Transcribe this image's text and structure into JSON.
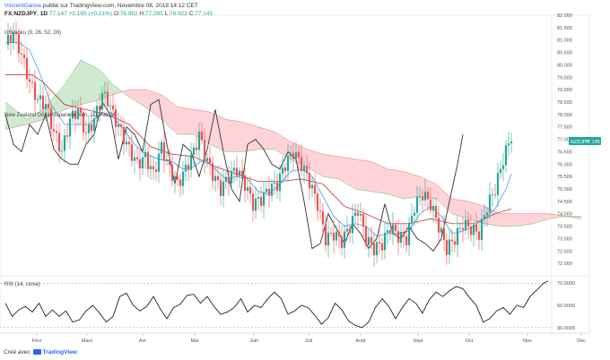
{
  "header": {
    "author": "VincentGanne",
    "published": "publié sur TradingView.com, Novembre 08, 2018 14:12 CET",
    "symbol": "FX:NZDJPY",
    "interval": "1D",
    "last": "77.147",
    "change": "+0.165 (+0.21%)",
    "open_label": "O:",
    "open": "76.982",
    "high_label": "H:",
    "high": "77.265",
    "low_label": "L:",
    "low": "76.923",
    "close_label": "C:",
    "close": "77.145"
  },
  "footer": {
    "created": "Créé avec",
    "brand": "TradingView"
  },
  "colors": {
    "up": "#26a69a",
    "down": "#ef5350",
    "bull_cloud": "#c8e6c9",
    "bear_cloud": "#ffcdd2",
    "conversion": "#2196f3",
    "base": "#b71c1c",
    "lagging": "#333333",
    "last_badge": "#26a69a"
  },
  "chart_data": [
    {
      "type": "candlestick",
      "title": "New Zealand Dollar/Japanese Yen, 1D, FXCM",
      "indicator": "Ichimoku (9, 26, 52, 26)",
      "x_labels": [
        "Févr",
        "Mars",
        "Avr",
        "Mai",
        "Juin",
        "Juil",
        "Août",
        "Sept",
        "Oct",
        "Nov",
        "Déc"
      ],
      "ylim": [
        71.5,
        82.0
      ],
      "y_ticks": [
        "82.000",
        "81.500",
        "81.000",
        "80.500",
        "80.000",
        "79.500",
        "79.000",
        "78.500",
        "78.000",
        "77.500",
        "77.000",
        "76.500",
        "76.000",
        "75.500",
        "75.000",
        "74.500",
        "74.000",
        "73.500",
        "73.000",
        "72.500",
        "72.000"
      ],
      "last_label": "NZDJPY",
      "last_value": "77.145",
      "close_path": [
        [
          0,
          80.8
        ],
        [
          3,
          81.3
        ],
        [
          6,
          80.4
        ],
        [
          9,
          79.3
        ],
        [
          12,
          78.6
        ],
        [
          15,
          78.4
        ],
        [
          18,
          77.3
        ],
        [
          21,
          76.5
        ],
        [
          24,
          77.8
        ],
        [
          27,
          78.2
        ],
        [
          30,
          77.2
        ],
        [
          33,
          77.8
        ],
        [
          36,
          78.8
        ],
        [
          38,
          78.6
        ],
        [
          40,
          78.0
        ],
        [
          43,
          77.3
        ],
        [
          46,
          76.6
        ],
        [
          49,
          76.0
        ],
        [
          52,
          76.3
        ],
        [
          55,
          75.6
        ],
        [
          58,
          76.7
        ],
        [
          61,
          75.8
        ],
        [
          64,
          75.2
        ],
        [
          67,
          75.8
        ],
        [
          70,
          76.5
        ],
        [
          72,
          77.2
        ],
        [
          74,
          76.4
        ],
        [
          77,
          75.6
        ],
        [
          80,
          75.0
        ],
        [
          83,
          75.5
        ],
        [
          86,
          75.8
        ],
        [
          89,
          75.2
        ],
        [
          92,
          74.4
        ],
        [
          95,
          74.6
        ],
        [
          98,
          75.0
        ],
        [
          101,
          75.2
        ],
        [
          104,
          76.0
        ],
        [
          107,
          76.5
        ],
        [
          110,
          76.0
        ],
        [
          113,
          75.3
        ],
        [
          116,
          74.4
        ],
        [
          119,
          73.0
        ],
        [
          122,
          73.2
        ],
        [
          125,
          72.9
        ],
        [
          128,
          73.5
        ],
        [
          131,
          74.2
        ],
        [
          134,
          73.0
        ],
        [
          137,
          72.6
        ],
        [
          140,
          72.8
        ],
        [
          143,
          73.5
        ],
        [
          146,
          73.1
        ],
        [
          149,
          73.0
        ],
        [
          152,
          74.3
        ],
        [
          155,
          74.8
        ],
        [
          158,
          74.4
        ],
        [
          161,
          73.5
        ],
        [
          164,
          72.6
        ],
        [
          167,
          73.0
        ],
        [
          170,
          73.6
        ],
        [
          173,
          73.4
        ],
        [
          176,
          73.2
        ],
        [
          179,
          74.3
        ],
        [
          182,
          75.0
        ],
        [
          185,
          76.2
        ],
        [
          188,
          77.15
        ]
      ],
      "conversion_path": [
        [
          0,
          80.9
        ],
        [
          5,
          80.9
        ],
        [
          9,
          80.6
        ],
        [
          13,
          79.6
        ],
        [
          17,
          78.4
        ],
        [
          22,
          77.6
        ],
        [
          27,
          77.6
        ],
        [
          31,
          77.6
        ],
        [
          35,
          78.0
        ],
        [
          40,
          77.9
        ],
        [
          44,
          77.4
        ],
        [
          48,
          76.8
        ],
        [
          52,
          76.4
        ],
        [
          57,
          76.2
        ],
        [
          62,
          76.1
        ],
        [
          66,
          75.8
        ],
        [
          70,
          75.9
        ],
        [
          74,
          76.2
        ],
        [
          78,
          75.8
        ],
        [
          82,
          75.4
        ],
        [
          86,
          75.5
        ],
        [
          90,
          75.4
        ],
        [
          94,
          74.9
        ],
        [
          98,
          74.8
        ],
        [
          102,
          75.2
        ],
        [
          106,
          75.7
        ],
        [
          110,
          75.8
        ],
        [
          114,
          75.5
        ],
        [
          118,
          74.7
        ],
        [
          122,
          73.9
        ],
        [
          126,
          73.5
        ],
        [
          130,
          73.6
        ],
        [
          134,
          73.5
        ],
        [
          138,
          73.1
        ],
        [
          142,
          73.2
        ],
        [
          146,
          73.2
        ],
        [
          150,
          73.3
        ],
        [
          154,
          74.0
        ],
        [
          158,
          74.3
        ],
        [
          162,
          73.9
        ],
        [
          166,
          73.2
        ],
        [
          170,
          73.3
        ],
        [
          174,
          73.5
        ],
        [
          178,
          73.8
        ],
        [
          182,
          74.2
        ],
        [
          186,
          75.0
        ],
        [
          188,
          75.6
        ]
      ],
      "base_path": [
        [
          0,
          79.6
        ],
        [
          10,
          79.6
        ],
        [
          14,
          79.3
        ],
        [
          22,
          78.4
        ],
        [
          30,
          78.2
        ],
        [
          38,
          78.0
        ],
        [
          46,
          77.6
        ],
        [
          54,
          76.7
        ],
        [
          62,
          76.4
        ],
        [
          70,
          76.3
        ],
        [
          78,
          75.9
        ],
        [
          86,
          75.6
        ],
        [
          94,
          75.3
        ],
        [
          102,
          75.3
        ],
        [
          110,
          75.4
        ],
        [
          118,
          75.2
        ],
        [
          126,
          74.3
        ],
        [
          134,
          74.0
        ],
        [
          142,
          73.6
        ],
        [
          150,
          73.6
        ],
        [
          158,
          73.8
        ],
        [
          166,
          73.6
        ],
        [
          174,
          73.6
        ],
        [
          182,
          74.0
        ],
        [
          188,
          74.2
        ]
      ],
      "span_a_path": [
        [
          0,
          78.5
        ],
        [
          8,
          77.8
        ],
        [
          14,
          78.2
        ],
        [
          22,
          79.2
        ],
        [
          28,
          80.2
        ],
        [
          35,
          79.8
        ],
        [
          40,
          79.2
        ],
        [
          46,
          78.7
        ],
        [
          52,
          78.3
        ],
        [
          58,
          77.8
        ],
        [
          64,
          77.2
        ],
        [
          70,
          77.2
        ],
        [
          76,
          76.8
        ],
        [
          82,
          76.5
        ],
        [
          88,
          76.5
        ],
        [
          94,
          76.6
        ],
        [
          100,
          76.6
        ],
        [
          106,
          76.2
        ],
        [
          112,
          75.9
        ],
        [
          118,
          75.5
        ],
        [
          124,
          75.4
        ],
        [
          130,
          75.0
        ],
        [
          136,
          74.9
        ],
        [
          142,
          74.8
        ],
        [
          148,
          74.6
        ],
        [
          154,
          74.7
        ],
        [
          160,
          74.6
        ],
        [
          166,
          74.0
        ],
        [
          172,
          73.8
        ],
        [
          178,
          73.6
        ],
        [
          184,
          73.5
        ],
        [
          190,
          73.5
        ],
        [
          196,
          73.6
        ],
        [
          202,
          73.8
        ],
        [
          208,
          73.9
        ],
        [
          214,
          73.8
        ]
      ],
      "span_b_path": [
        [
          0,
          77.4
        ],
        [
          8,
          77.6
        ],
        [
          14,
          77.8
        ],
        [
          22,
          78.2
        ],
        [
          28,
          78.4
        ],
        [
          35,
          78.6
        ],
        [
          40,
          78.8
        ],
        [
          46,
          79.0
        ],
        [
          52,
          79.0
        ],
        [
          58,
          78.8
        ],
        [
          64,
          78.3
        ],
        [
          70,
          78.2
        ],
        [
          76,
          78.1
        ],
        [
          82,
          77.8
        ],
        [
          88,
          77.7
        ],
        [
          94,
          77.5
        ],
        [
          100,
          77.3
        ],
        [
          106,
          76.9
        ],
        [
          112,
          76.6
        ],
        [
          118,
          76.4
        ],
        [
          124,
          76.3
        ],
        [
          130,
          76.2
        ],
        [
          136,
          76.1
        ],
        [
          142,
          75.8
        ],
        [
          148,
          75.7
        ],
        [
          154,
          75.5
        ],
        [
          160,
          75.2
        ],
        [
          166,
          74.6
        ],
        [
          172,
          74.5
        ],
        [
          178,
          74.3
        ],
        [
          184,
          74.0
        ],
        [
          190,
          74.0
        ],
        [
          196,
          74.0
        ],
        [
          202,
          74.0
        ],
        [
          208,
          73.9
        ],
        [
          214,
          73.9
        ]
      ],
      "lagging_path": [
        [
          0,
          78.0
        ],
        [
          3,
          76.8
        ],
        [
          6,
          76.5
        ],
        [
          9,
          77.6
        ],
        [
          12,
          77.2
        ],
        [
          15,
          78.0
        ],
        [
          18,
          76.6
        ],
        [
          21,
          76.2
        ],
        [
          24,
          76.0
        ],
        [
          27,
          76.0
        ],
        [
          30,
          76.8
        ],
        [
          33,
          77.2
        ],
        [
          36,
          78.5
        ],
        [
          39,
          78.0
        ],
        [
          42,
          76.2
        ],
        [
          45,
          77.5
        ],
        [
          48,
          77.2
        ],
        [
          51,
          76.5
        ],
        [
          54,
          78.4
        ],
        [
          57,
          78.6
        ],
        [
          60,
          76.8
        ],
        [
          63,
          75.2
        ],
        [
          66,
          76.8
        ],
        [
          69,
          76.5
        ],
        [
          72,
          75.5
        ],
        [
          75,
          76.6
        ],
        [
          78,
          78.2
        ],
        [
          81,
          76.5
        ],
        [
          84,
          75.0
        ],
        [
          87,
          74.5
        ],
        [
          90,
          76.8
        ],
        [
          93,
          77.0
        ],
        [
          96,
          76.6
        ],
        [
          99,
          76.0
        ],
        [
          102,
          75.8
        ],
        [
          105,
          76.5
        ],
        [
          108,
          76.2
        ],
        [
          111,
          74.5
        ],
        [
          114,
          72.6
        ],
        [
          117,
          72.8
        ],
        [
          120,
          74.0
        ],
        [
          123,
          73.4
        ],
        [
          126,
          72.8
        ],
        [
          129,
          73.6
        ],
        [
          132,
          73.2
        ],
        [
          135,
          72.6
        ],
        [
          138,
          73.0
        ],
        [
          141,
          74.4
        ],
        [
          144,
          73.2
        ],
        [
          147,
          73.0
        ],
        [
          150,
          73.5
        ],
        [
          153,
          73.0
        ],
        [
          156,
          72.8
        ],
        [
          159,
          72.5
        ],
        [
          162,
          73.0
        ],
        [
          165,
          74.5
        ],
        [
          168,
          76.0
        ],
        [
          170,
          77.2
        ]
      ]
    },
    {
      "type": "line",
      "title": "RSI (14, close)",
      "ylim": [
        25,
        75
      ],
      "y_ticks": [
        "70.0000",
        "50.0000",
        "30.0000"
      ],
      "guide_levels": [
        70,
        30
      ],
      "values": [
        [
          0,
          52
        ],
        [
          3,
          40
        ],
        [
          6,
          46
        ],
        [
          9,
          49
        ],
        [
          12,
          44
        ],
        [
          15,
          52
        ],
        [
          18,
          40
        ],
        [
          21,
          46
        ],
        [
          24,
          40
        ],
        [
          27,
          45
        ],
        [
          30,
          35
        ],
        [
          33,
          37
        ],
        [
          36,
          45
        ],
        [
          39,
          50
        ],
        [
          42,
          43
        ],
        [
          45,
          35
        ],
        [
          48,
          40
        ],
        [
          51,
          58
        ],
        [
          54,
          61
        ],
        [
          57,
          50
        ],
        [
          60,
          45
        ],
        [
          63,
          49
        ],
        [
          66,
          58
        ],
        [
          69,
          47
        ],
        [
          72,
          38
        ],
        [
          75,
          48
        ],
        [
          78,
          51
        ],
        [
          81,
          59
        ],
        [
          84,
          60
        ],
        [
          87,
          52
        ],
        [
          90,
          58
        ],
        [
          93,
          49
        ],
        [
          96,
          42
        ],
        [
          99,
          44
        ],
        [
          102,
          48
        ],
        [
          105,
          56
        ],
        [
          108,
          44
        ],
        [
          111,
          50
        ],
        [
          114,
          48
        ],
        [
          117,
          56
        ],
        [
          120,
          62
        ],
        [
          123,
          56
        ],
        [
          126,
          42
        ],
        [
          129,
          45
        ],
        [
          132,
          50
        ],
        [
          135,
          48
        ],
        [
          138,
          41
        ],
        [
          141,
          33
        ],
        [
          144,
          39
        ],
        [
          147,
          52
        ],
        [
          150,
          46
        ],
        [
          153,
          36
        ],
        [
          156,
          32
        ],
        [
          159,
          30
        ],
        [
          162,
          35
        ],
        [
          165,
          48
        ],
        [
          168,
          56
        ],
        [
          171,
          49
        ],
        [
          174,
          38
        ],
        [
          177,
          48
        ],
        [
          180,
          56
        ],
        [
          183,
          52
        ],
        [
          186,
          43
        ],
        [
          189,
          55
        ],
        [
          192,
          62
        ],
        [
          195,
          58
        ],
        [
          198,
          63
        ],
        [
          201,
          67
        ],
        [
          204,
          65
        ],
        [
          207,
          57
        ],
        [
          210,
          50
        ],
        [
          213,
          35
        ],
        [
          216,
          38
        ],
        [
          219,
          45
        ],
        [
          222,
          48
        ],
        [
          225,
          42
        ],
        [
          228,
          50
        ],
        [
          231,
          48
        ],
        [
          234,
          58
        ],
        [
          237,
          64
        ],
        [
          240,
          70
        ],
        [
          242,
          72
        ]
      ]
    }
  ]
}
